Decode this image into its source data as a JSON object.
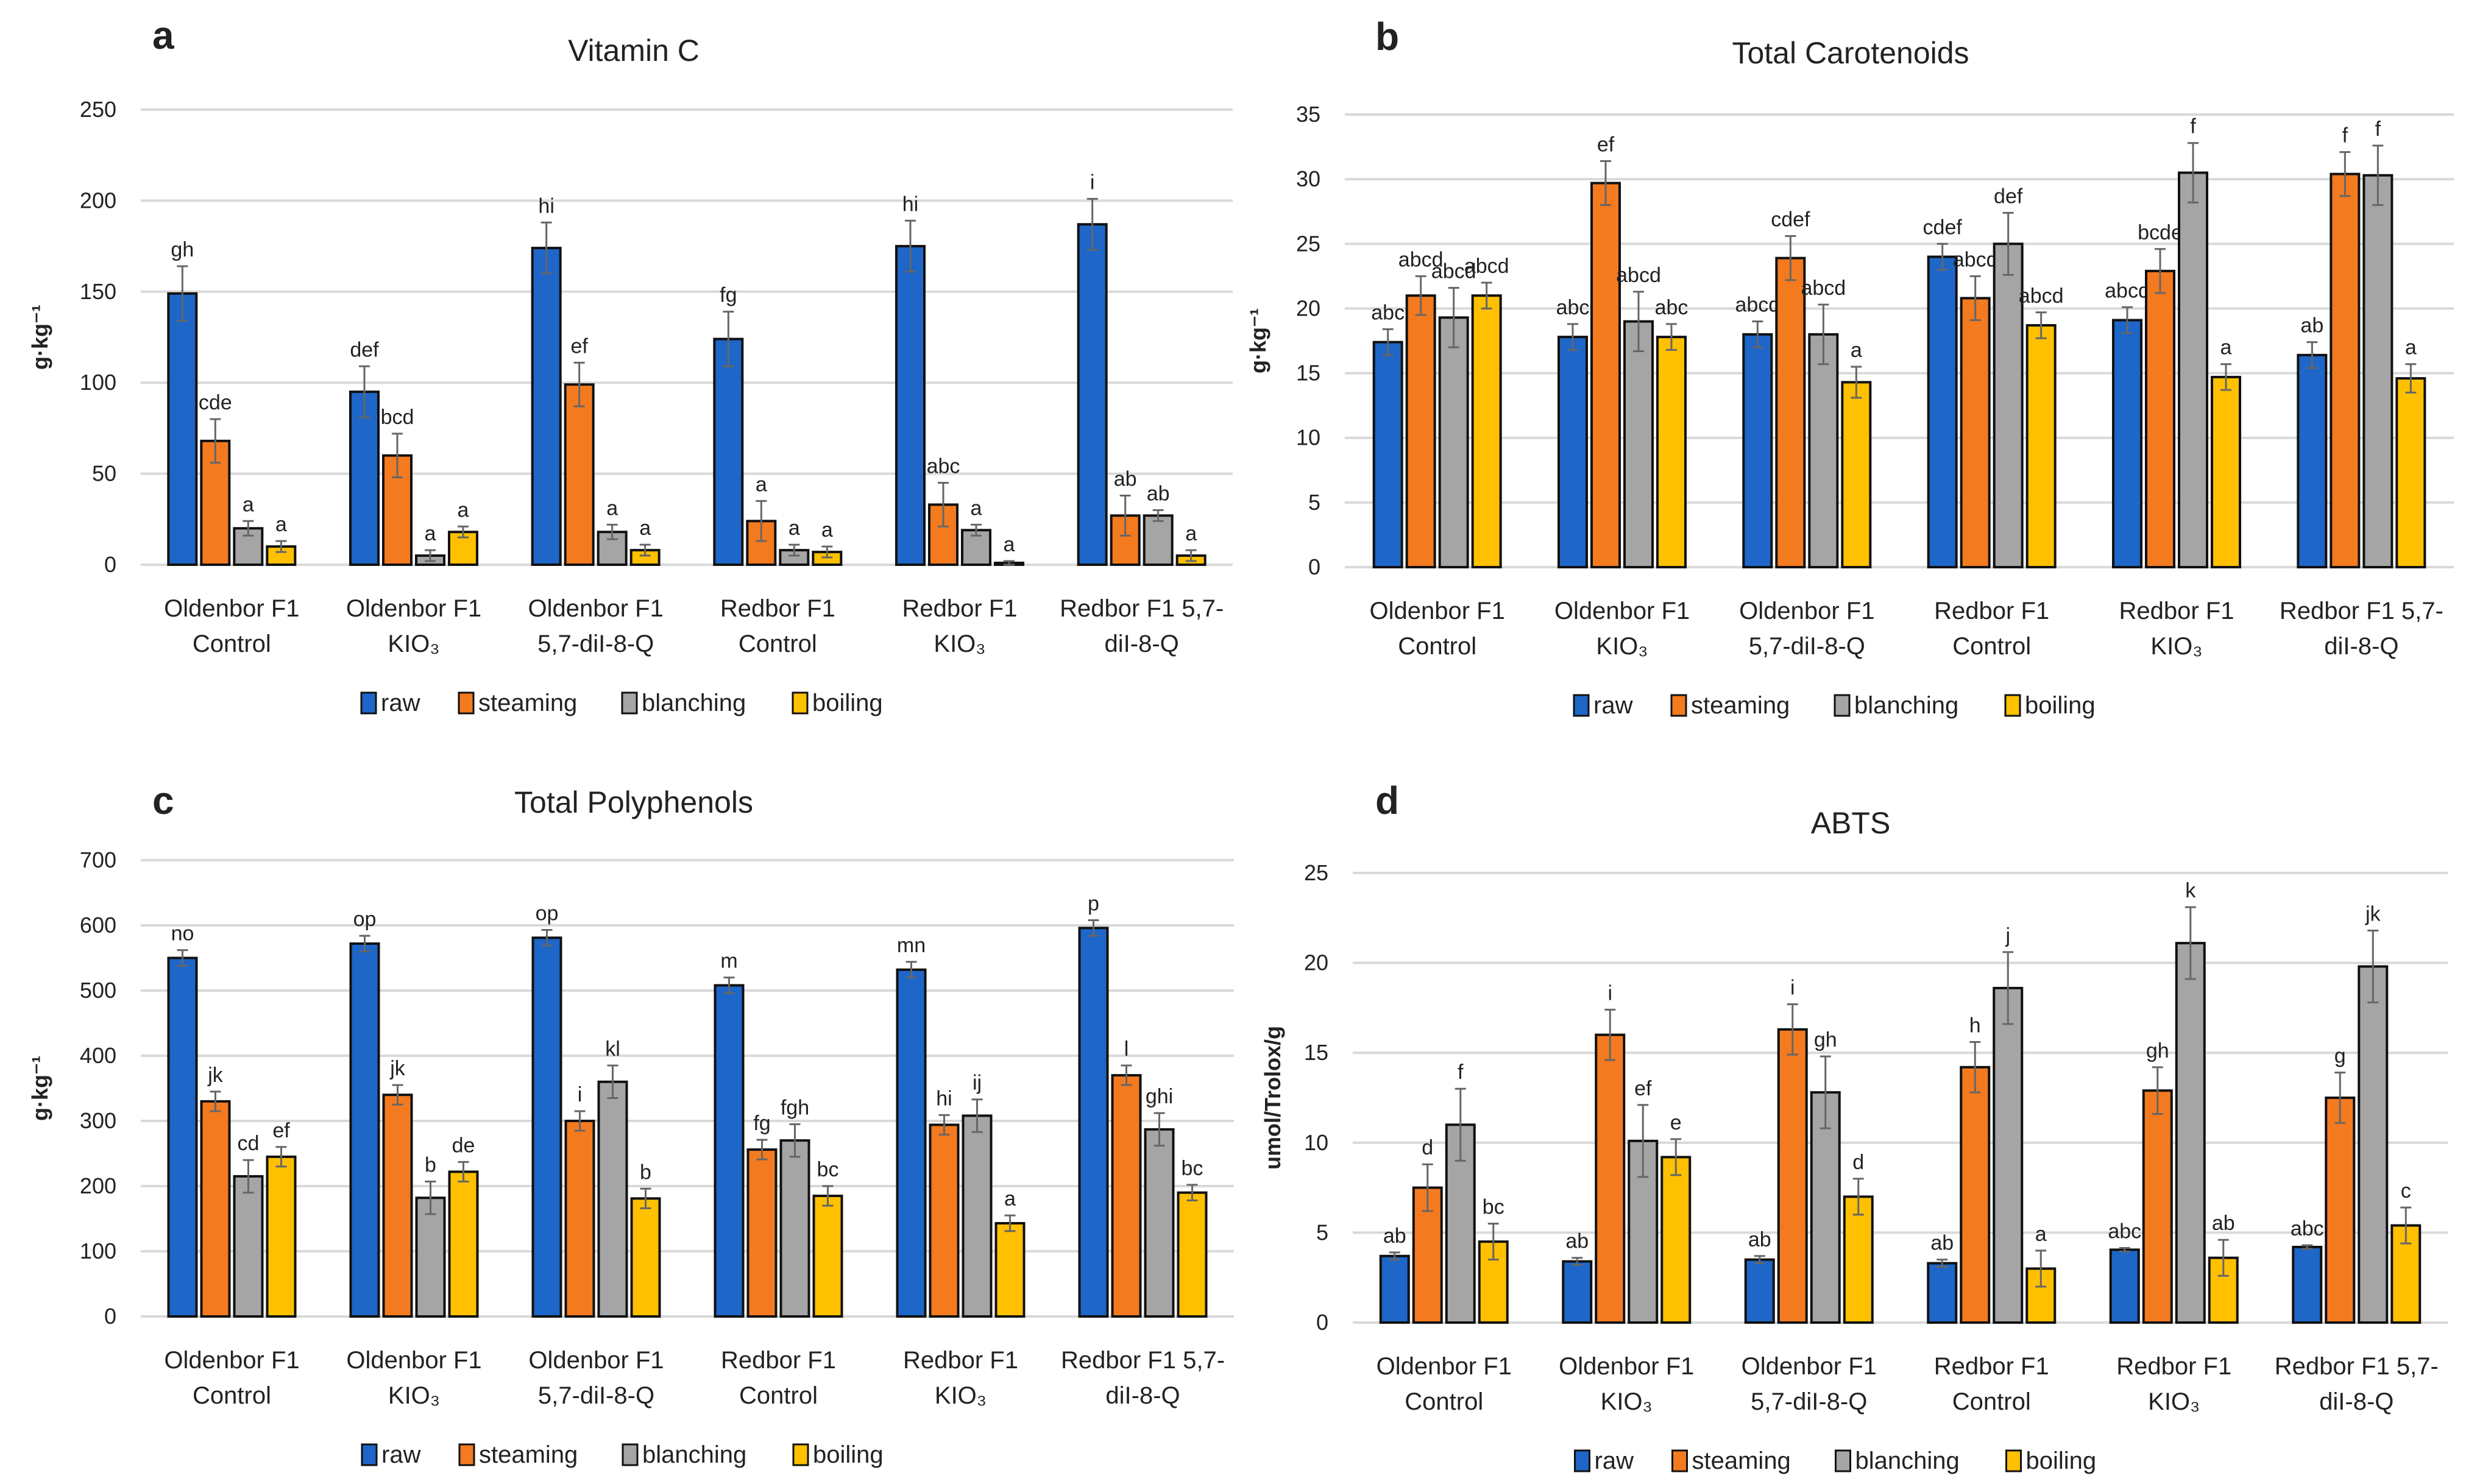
{
  "legend_colors": {
    "raw": "#1E66C8",
    "steaming": "#F47A20",
    "blanching": "#A5A5A5",
    "boiling": "#FFC000"
  },
  "chart_data": [
    {
      "panel_letter": "a",
      "type": "bar",
      "title": "Vitamin C",
      "ylabel": "g·kg⁻¹",
      "xlabel": "",
      "ylim": [
        0,
        250
      ],
      "yticks": [
        0,
        50,
        100,
        150,
        200,
        250
      ],
      "grid": true,
      "legend_position": "bottom",
      "categories": [
        [
          "Oldenbor F1",
          "Control"
        ],
        [
          "Oldenbor F1",
          "KIO₃"
        ],
        [
          "Oldenbor F1",
          "5,7-diI-8-Q"
        ],
        [
          "Redbor F1",
          "Control"
        ],
        [
          "Redbor F1",
          "KIO₃"
        ],
        [
          "Redbor F1 5,7-",
          "diI-8-Q"
        ]
      ],
      "series": [
        {
          "name": "raw",
          "values": [
            149,
            95,
            174,
            124,
            175,
            187
          ],
          "errors": [
            15,
            14,
            14,
            15,
            14,
            14
          ],
          "letters": [
            "gh",
            "def",
            "hi",
            "fg",
            "hi",
            "i"
          ]
        },
        {
          "name": "steaming",
          "values": [
            68,
            60,
            99,
            24,
            33,
            27
          ],
          "errors": [
            12,
            12,
            12,
            11,
            12,
            11
          ],
          "letters": [
            "cde",
            "bcd",
            "ef",
            "a",
            "abc",
            "ab"
          ]
        },
        {
          "name": "blanching",
          "values": [
            20,
            5,
            18,
            8,
            19,
            27
          ],
          "errors": [
            4,
            3,
            4,
            3,
            3,
            3
          ],
          "letters": [
            "a",
            "a",
            "a",
            "a",
            "a",
            "ab"
          ]
        },
        {
          "name": "boiling",
          "values": [
            10,
            18,
            8,
            7,
            1,
            5
          ],
          "errors": [
            3,
            3,
            3,
            3,
            1,
            3
          ],
          "letters": [
            "a",
            "a",
            "a",
            "a",
            "a",
            "a"
          ]
        }
      ]
    },
    {
      "panel_letter": "b",
      "type": "bar",
      "title": "Total Carotenoids",
      "ylabel": "g·kg⁻¹",
      "xlabel": "",
      "ylim": [
        0,
        35
      ],
      "yticks": [
        0,
        5,
        10,
        15,
        20,
        25,
        30,
        35
      ],
      "grid": true,
      "legend_position": "bottom",
      "categories": [
        [
          "Oldenbor F1",
          "Control"
        ],
        [
          "Oldenbor F1",
          "KIO₃"
        ],
        [
          "Oldenbor F1",
          "5,7-diI-8-Q"
        ],
        [
          "Redbor F1",
          "Control"
        ],
        [
          "Redbor F1",
          "KIO₃"
        ],
        [
          "Redbor F1 5,7-",
          "diI-8-Q"
        ]
      ],
      "series": [
        {
          "name": "raw",
          "values": [
            17.4,
            17.8,
            18.0,
            24.0,
            19.1,
            16.4
          ],
          "errors": [
            1.0,
            1.0,
            1.0,
            1.0,
            1.0,
            1.0
          ],
          "letters": [
            "abc",
            "abc",
            "abcd",
            "cdef",
            "abcd",
            "ab"
          ]
        },
        {
          "name": "steaming",
          "values": [
            21.0,
            29.7,
            23.9,
            20.8,
            22.9,
            30.4
          ],
          "errors": [
            1.5,
            1.7,
            1.7,
            1.7,
            1.7,
            1.7
          ],
          "letters": [
            "abcd",
            "ef",
            "cdef",
            "abcd",
            "bcde",
            "f"
          ]
        },
        {
          "name": "blanching",
          "values": [
            19.3,
            19.0,
            18.0,
            25.0,
            30.5,
            30.3
          ],
          "errors": [
            2.3,
            2.3,
            2.3,
            2.4,
            2.3,
            2.3
          ],
          "letters": [
            "abcd",
            "abcd",
            "abcd",
            "def",
            "f",
            "f"
          ]
        },
        {
          "name": "boiling",
          "values": [
            21.0,
            17.8,
            14.3,
            18.7,
            14.7,
            14.6
          ],
          "errors": [
            1.0,
            1.0,
            1.2,
            1.0,
            1.0,
            1.1
          ],
          "letters": [
            "abcd",
            "abc",
            "a",
            "abcd",
            "a",
            "a"
          ]
        }
      ]
    },
    {
      "panel_letter": "c",
      "type": "bar",
      "title": "Total Polyphenols",
      "ylabel": "g·kg⁻¹",
      "xlabel": "",
      "ylim": [
        0,
        700
      ],
      "yticks": [
        0,
        100,
        200,
        300,
        400,
        500,
        600,
        700
      ],
      "grid": true,
      "legend_position": "bottom",
      "categories": [
        [
          "Oldenbor F1",
          "Control"
        ],
        [
          "Oldenbor F1",
          "KIO₃"
        ],
        [
          "Oldenbor F1",
          "5,7-diI-8-Q"
        ],
        [
          "Redbor F1",
          "Control"
        ],
        [
          "Redbor F1",
          "KIO₃"
        ],
        [
          "Redbor F1 5,7-",
          "diI-8-Q"
        ]
      ],
      "series": [
        {
          "name": "raw",
          "values": [
            550,
            572,
            581,
            508,
            532,
            596
          ],
          "errors": [
            12,
            12,
            12,
            12,
            12,
            12
          ],
          "letters": [
            "no",
            "op",
            "op",
            "m",
            "mn",
            "p"
          ]
        },
        {
          "name": "steaming",
          "values": [
            330,
            340,
            300,
            256,
            294,
            370
          ],
          "errors": [
            15,
            15,
            15,
            15,
            15,
            15
          ],
          "letters": [
            "jk",
            "jk",
            "i",
            "fg",
            "hi",
            "l"
          ]
        },
        {
          "name": "blanching",
          "values": [
            215,
            182,
            360,
            270,
            308,
            287
          ],
          "errors": [
            25,
            25,
            25,
            25,
            25,
            25
          ],
          "letters": [
            "cd",
            "b",
            "kl",
            "fgh",
            "ij",
            "ghi"
          ]
        },
        {
          "name": "boiling",
          "values": [
            245,
            222,
            181,
            185,
            143,
            190
          ],
          "errors": [
            15,
            15,
            15,
            15,
            12,
            12
          ],
          "letters": [
            "ef",
            "de",
            "b",
            "bc",
            "a",
            "bc"
          ]
        }
      ]
    },
    {
      "panel_letter": "d",
      "type": "bar",
      "title": "ABTS",
      "ylabel": "umol/Trolox/g",
      "xlabel": "",
      "ylim": [
        0,
        25
      ],
      "yticks": [
        0,
        5,
        10,
        15,
        20,
        25
      ],
      "grid": true,
      "legend_position": "bottom",
      "categories": [
        [
          "Oldenbor F1",
          "Control"
        ],
        [
          "Oldenbor F1",
          "KIO₃"
        ],
        [
          "Oldenbor F1",
          "5,7-diI-8-Q"
        ],
        [
          "Redbor F1",
          "Control"
        ],
        [
          "Redbor F1",
          "KIO₃"
        ],
        [
          "Redbor F1 5,7-",
          "diI-8-Q"
        ]
      ],
      "series": [
        {
          "name": "raw",
          "values": [
            3.7,
            3.4,
            3.5,
            3.3,
            4.05,
            4.2
          ],
          "errors": [
            0.2,
            0.2,
            0.2,
            0.2,
            0.1,
            0.1
          ],
          "letters": [
            "ab",
            "ab",
            "ab",
            "ab",
            "abc",
            "abc"
          ]
        },
        {
          "name": "steaming",
          "values": [
            7.5,
            16.0,
            16.3,
            14.2,
            12.9,
            12.5
          ],
          "errors": [
            1.3,
            1.4,
            1.4,
            1.4,
            1.3,
            1.4
          ],
          "letters": [
            "d",
            "i",
            "i",
            "h",
            "gh",
            "g"
          ]
        },
        {
          "name": "blanching",
          "values": [
            11.0,
            10.1,
            12.8,
            18.6,
            21.1,
            19.8
          ],
          "errors": [
            2.0,
            2.0,
            2.0,
            2.0,
            2.0,
            2.0
          ],
          "letters": [
            "f",
            "ef",
            "gh",
            "j",
            "k",
            "jk"
          ]
        },
        {
          "name": "boiling",
          "values": [
            4.5,
            9.2,
            7.0,
            3.0,
            3.6,
            5.4
          ],
          "errors": [
            1.0,
            1.0,
            1.0,
            1.0,
            1.0,
            1.0
          ],
          "letters": [
            "bc",
            "e",
            "d",
            "a",
            "ab",
            "c"
          ]
        }
      ]
    }
  ]
}
